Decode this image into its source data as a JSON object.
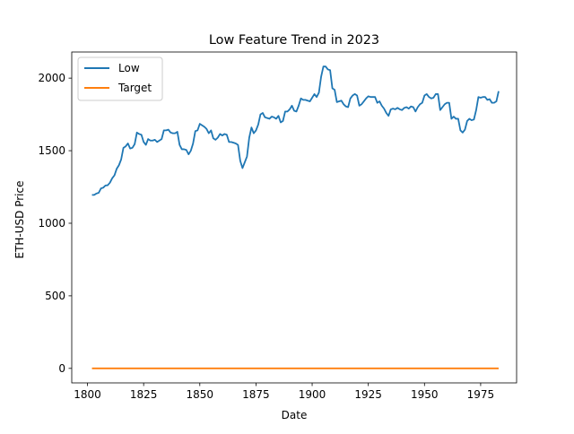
{
  "chart_data": {
    "type": "line",
    "title": "Low Feature Trend in 2023",
    "xlabel": "Date",
    "ylabel": "ETH-USD Price",
    "xlim": [
      1793,
      1991
    ],
    "ylim": [
      -100,
      2180
    ],
    "xticks": [
      1800,
      1825,
      1850,
      1875,
      1900,
      1925,
      1950,
      1975
    ],
    "xtick_labels": [
      "1800",
      "1825",
      "1850",
      "1875",
      "1900",
      "1925",
      "1950",
      "1975"
    ],
    "yticks": [
      0,
      500,
      1000,
      1500,
      2000
    ],
    "ytick_labels": [
      "0",
      "500",
      "1000",
      "1500",
      "2000"
    ],
    "grid": false,
    "legend_position": "top-left",
    "series": [
      {
        "name": "Low",
        "color": "#1f77b4",
        "x": [
          1802,
          1803,
          1804,
          1805,
          1806,
          1807,
          1808,
          1809,
          1810,
          1811,
          1812,
          1813,
          1814,
          1815,
          1816,
          1817,
          1818,
          1819,
          1820,
          1821,
          1822,
          1823,
          1824,
          1825,
          1826,
          1827,
          1828,
          1829,
          1830,
          1831,
          1832,
          1833,
          1834,
          1835,
          1836,
          1837,
          1838,
          1839,
          1840,
          1841,
          1842,
          1843,
          1844,
          1845,
          1846,
          1847,
          1848,
          1849,
          1850,
          1851,
          1852,
          1853,
          1854,
          1855,
          1856,
          1857,
          1858,
          1859,
          1860,
          1861,
          1862,
          1863,
          1864,
          1865,
          1866,
          1867,
          1868,
          1869,
          1870,
          1871,
          1872,
          1873,
          1874,
          1875,
          1876,
          1877,
          1878,
          1879,
          1880,
          1881,
          1882,
          1883,
          1884,
          1885,
          1886,
          1887,
          1888,
          1889,
          1890,
          1891,
          1892,
          1893,
          1894,
          1895,
          1896,
          1897,
          1898,
          1899,
          1900,
          1901,
          1902,
          1903,
          1904,
          1905,
          1906,
          1907,
          1908,
          1909,
          1910,
          1911,
          1912,
          1913,
          1914,
          1915,
          1916,
          1917,
          1918,
          1919,
          1920,
          1921,
          1922,
          1923,
          1924,
          1925,
          1926,
          1927,
          1928,
          1929,
          1930,
          1931,
          1932,
          1933,
          1934,
          1935,
          1936,
          1937,
          1938,
          1939,
          1940,
          1941,
          1942,
          1943,
          1944,
          1945,
          1946,
          1947,
          1948,
          1949,
          1950,
          1951,
          1952,
          1953,
          1954,
          1955,
          1956,
          1957,
          1958,
          1959,
          1960,
          1961,
          1962,
          1963,
          1964,
          1965,
          1966,
          1967,
          1968,
          1969,
          1970,
          1971,
          1972,
          1973,
          1974,
          1975,
          1976,
          1977,
          1978,
          1979,
          1980,
          1981,
          1982,
          1983
        ],
        "values": [
          1195,
          1195,
          1205,
          1210,
          1240,
          1245,
          1260,
          1262,
          1280,
          1310,
          1330,
          1375,
          1400,
          1440,
          1520,
          1530,
          1550,
          1515,
          1520,
          1545,
          1625,
          1615,
          1610,
          1560,
          1540,
          1580,
          1570,
          1570,
          1575,
          1560,
          1570,
          1580,
          1640,
          1640,
          1645,
          1625,
          1620,
          1620,
          1630,
          1540,
          1510,
          1510,
          1505,
          1475,
          1500,
          1550,
          1635,
          1640,
          1685,
          1675,
          1665,
          1650,
          1620,
          1640,
          1585,
          1575,
          1590,
          1615,
          1605,
          1615,
          1610,
          1560,
          1560,
          1555,
          1550,
          1540,
          1430,
          1380,
          1420,
          1460,
          1590,
          1660,
          1620,
          1640,
          1680,
          1750,
          1760,
          1730,
          1725,
          1720,
          1735,
          1730,
          1720,
          1740,
          1695,
          1705,
          1770,
          1770,
          1785,
          1810,
          1775,
          1770,
          1810,
          1860,
          1850,
          1850,
          1845,
          1840,
          1865,
          1890,
          1870,
          1900,
          2010,
          2080,
          2080,
          2060,
          2055,
          1930,
          1920,
          1835,
          1840,
          1845,
          1820,
          1805,
          1800,
          1860,
          1880,
          1890,
          1880,
          1810,
          1820,
          1840,
          1860,
          1875,
          1870,
          1870,
          1870,
          1830,
          1840,
          1810,
          1790,
          1760,
          1740,
          1785,
          1790,
          1785,
          1795,
          1785,
          1780,
          1795,
          1800,
          1790,
          1805,
          1800,
          1770,
          1800,
          1820,
          1830,
          1880,
          1890,
          1870,
          1860,
          1865,
          1890,
          1890,
          1780,
          1800,
          1820,
          1830,
          1830,
          1720,
          1735,
          1720,
          1720,
          1640,
          1625,
          1645,
          1705,
          1720,
          1710,
          1715,
          1780,
          1870,
          1865,
          1870,
          1870,
          1850,
          1855,
          1830,
          1830,
          1840,
          1910
        ]
      },
      {
        "name": "Target",
        "color": "#ff7f0e",
        "x": [
          1802,
          1983
        ],
        "values": [
          0,
          0
        ]
      }
    ]
  }
}
